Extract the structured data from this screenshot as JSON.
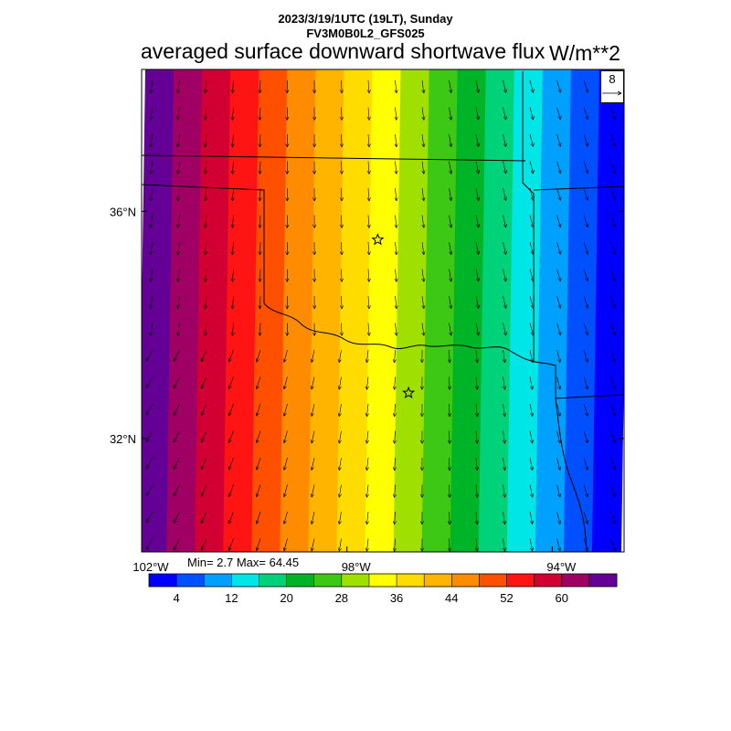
{
  "header": {
    "date_line": "2023/3/19/1UTC (19LT), Sunday",
    "model_line": "FV3M0B0L2_GFS025"
  },
  "title": "averaged surface downward shortwave flux",
  "units": "W/m**2",
  "stats": {
    "text": "Min= 2.7 Max= 64.45",
    "min": 2.7,
    "max": 64.45
  },
  "vector_reference": {
    "label": "8"
  },
  "map": {
    "lon_range": [
      -102.0,
      -92.6
    ],
    "lat_range": [
      30.0,
      38.5
    ],
    "lat_ticks": [
      {
        "value": 36,
        "label": "36°N"
      },
      {
        "value": 32,
        "label": "32°N"
      }
    ],
    "lon_ticks": [
      {
        "value": -102,
        "label": "102°W"
      },
      {
        "value": -98,
        "label": "98°W"
      },
      {
        "value": -94,
        "label": "94°W"
      }
    ],
    "markers": [
      {
        "name": "station-star-north",
        "lon": -97.4,
        "lat": 35.5
      },
      {
        "name": "station-star-south",
        "lon": -96.8,
        "lat": 32.8
      }
    ]
  },
  "colorbar": {
    "colors": [
      "#0000ff",
      "#0050ff",
      "#00a0ff",
      "#00e6e6",
      "#00d27a",
      "#00b428",
      "#3cc814",
      "#a0e000",
      "#ffff00",
      "#ffdc00",
      "#ffb400",
      "#ff8c00",
      "#ff5000",
      "#ff1414",
      "#d20032",
      "#a00064",
      "#640096"
    ],
    "tick_labels": [
      "4",
      "12",
      "20",
      "28",
      "36",
      "44",
      "52",
      "60"
    ],
    "tick_values": [
      4,
      12,
      20,
      28,
      36,
      44,
      52,
      60
    ],
    "levels": [
      2,
      6,
      10,
      14,
      18,
      22,
      26,
      30,
      34,
      38,
      42,
      46,
      50,
      54,
      58,
      62
    ]
  },
  "field": {
    "description_values_west_to_east": [
      64.45,
      60,
      56,
      52,
      48,
      44,
      40,
      36,
      32,
      28,
      24,
      20,
      16,
      12,
      8,
      4,
      2.7
    ]
  }
}
